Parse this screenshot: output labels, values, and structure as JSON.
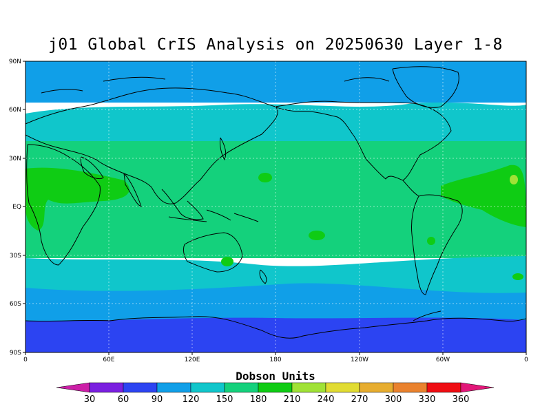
{
  "title": "j01 Global CrIS Analysis on 20250630 Layer 1-8",
  "lat_labels": [
    "90N",
    "60N",
    "30N",
    "EQ",
    "30S",
    "60S",
    "90S"
  ],
  "lon_labels": [
    "0",
    "60E",
    "120E",
    "180",
    "120W",
    "60W",
    "0"
  ],
  "colorbar": {
    "label": "Dobson Units",
    "ticks": [
      "30",
      "60",
      "90",
      "120",
      "150",
      "180",
      "210",
      "240",
      "270",
      "300",
      "330",
      "360"
    ],
    "colors": [
      "#cc1fa7",
      "#7a1fe0",
      "#2c44f2",
      "#109fe8",
      "#10c6cb",
      "#14d17c",
      "#0fcc14",
      "#a0e236",
      "#e1dc32",
      "#e7ad2f",
      "#ea822e",
      "#ef0d12",
      "#e21779"
    ]
  },
  "field_colors": {
    "band_60": "#2c44f2",
    "band_90": "#109fe8",
    "band_120": "#10c6cb",
    "band_150": "#14d17c",
    "band_180": "#0fcc14",
    "band_210": "#a0e236"
  }
}
